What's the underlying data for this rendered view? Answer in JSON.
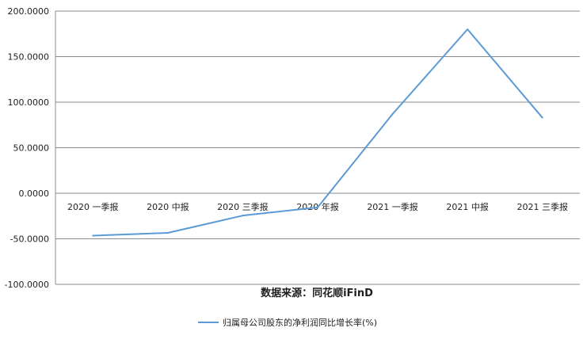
{
  "chart_data": {
    "type": "line",
    "categories": [
      "2020 一季报",
      "2020 中报",
      "2020 三季报",
      "2020 年报",
      "2021 一季报",
      "2021 中报",
      "2021 三季报"
    ],
    "series": [
      {
        "name": "归属母公司股东的净利润同比增长率(%)",
        "values": [
          -46.5,
          -43.5,
          -24.5,
          -15.5,
          87.0,
          180.0,
          83.0
        ],
        "color": "#5b9bd5"
      }
    ],
    "ylim": [
      -100,
      200
    ],
    "yticks": [
      -100,
      -50,
      0,
      50,
      100,
      150,
      200
    ],
    "ytick_labels": [
      "-100.0000",
      "-50.0000",
      "0.0000",
      "50.0000",
      "100.0000",
      "150.0000",
      "200.0000"
    ],
    "grid": true,
    "legend_position": "bottom",
    "source_note": "数据来源：同花顺iFinD"
  }
}
